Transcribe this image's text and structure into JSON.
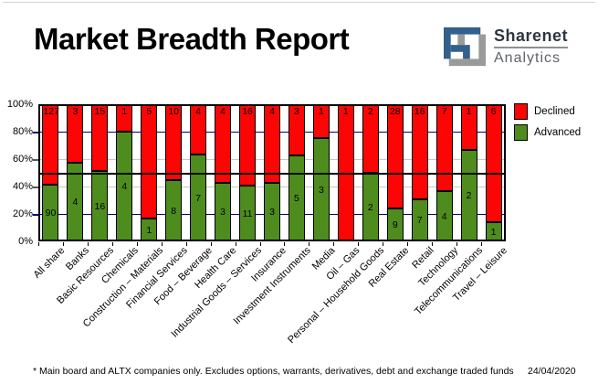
{
  "page": {
    "title": "Market Breadth Report"
  },
  "logo": {
    "name": "Sharenet",
    "division": "Analytics"
  },
  "legend": {
    "declined_label": "Declined",
    "advanced_label": "Advanced"
  },
  "footer": {
    "note": "* Main board and ALTX companies only. Excludes options, warrants, derivatives, debt and exchange traded funds",
    "date": "24/04/2020"
  },
  "colors": {
    "declined": "#fb0505",
    "advanced": "#4e8c1e",
    "grid_navy": "#000080",
    "grid_silver": "#c8c8c8",
    "midline": "#000000",
    "axis": "#000000",
    "logo_blue": "#33608c",
    "logo_gray": "#9a9a9a"
  },
  "chart_data": {
    "type": "bar",
    "stacked": true,
    "note": "Each bar = one sector; segment heights are the percent share of advancing vs declining companies; printed numbers are company counts",
    "categories": [
      "All share",
      "Banks",
      "Basic Resources",
      "Chemicals",
      "Construction – Materials",
      "Financial Services",
      "Food – Beverage",
      "Health Care",
      "Industrial Goods – Services",
      "Insurance",
      "Investment Instruments",
      "Media",
      "Oil – Gas",
      "Personal – Household Goods",
      "Real Estate",
      "Retail",
      "Technology",
      "Telecommunications",
      "Travel – Leisure"
    ],
    "series": [
      {
        "name": "Declined",
        "color": "#fb0505",
        "values": [
          127,
          3,
          15,
          1,
          5,
          10,
          4,
          4,
          16,
          4,
          3,
          1,
          1,
          2,
          28,
          16,
          7,
          1,
          6
        ]
      },
      {
        "name": "Advanced",
        "color": "#4e8c1e",
        "values": [
          90,
          4,
          16,
          4,
          1,
          8,
          7,
          3,
          11,
          3,
          5,
          3,
          0,
          2,
          9,
          7,
          4,
          2,
          1
        ]
      }
    ],
    "ylim": [
      0,
      100
    ],
    "yticks": [
      "0%",
      "20%",
      "40%",
      "60%",
      "80%",
      "100%"
    ],
    "midline_pct": 50,
    "grid": {
      "pct_20": "#000080",
      "pct_40": "#c8c8c8",
      "pct_60": "#c8c8c8",
      "pct_80": "#000080"
    },
    "legend_position": "right",
    "grid_on": true
  }
}
